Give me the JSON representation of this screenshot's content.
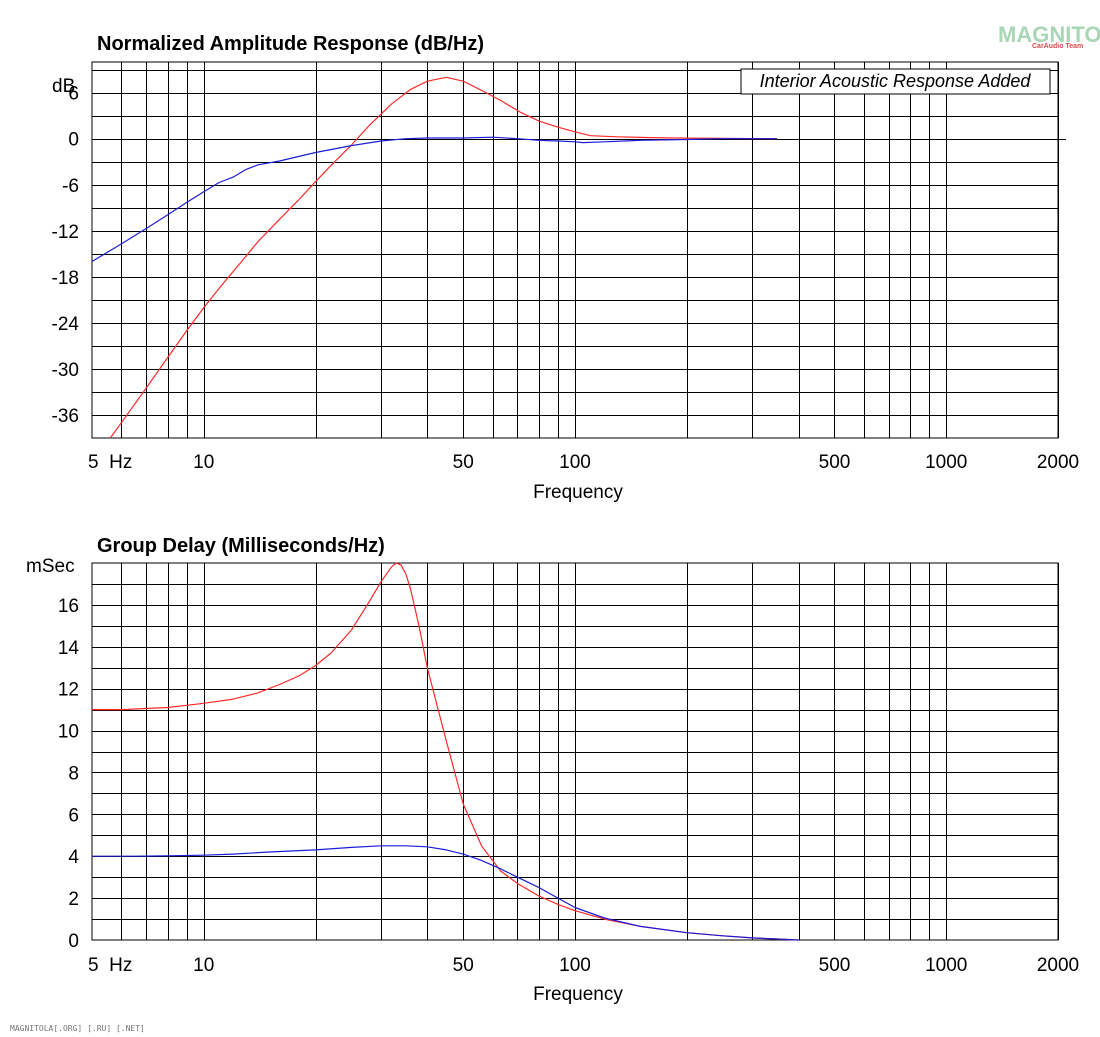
{
  "watermark": {
    "main": "MAGNITOLA",
    "sub": "CarAudio Team"
  },
  "footer": "MAGNITOLA[.ORG] [.RU] [.NET]",
  "colors": {
    "series_red": "#ff2a2a",
    "series_blue": "#1c1cd8",
    "grid": "#000000"
  },
  "chart_data": [
    {
      "type": "line",
      "title": "Normalized Amplitude Response (dB/Hz)",
      "xlabel": "Frequency",
      "ylabel": "dB",
      "x_scale": "log",
      "xlim": [
        5,
        2000
      ],
      "ylim": [
        -39,
        10
      ],
      "x_ticks": [
        5,
        10,
        50,
        100,
        500,
        1000,
        2000
      ],
      "x_tick_labels": [
        "5  Hz",
        "10",
        "50",
        "100",
        "500",
        "1000",
        "2000"
      ],
      "y_ticks": [
        6,
        0,
        -6,
        -12,
        -18,
        -24,
        -30,
        -36
      ],
      "y_tick_labels": [
        "6",
        "0",
        "-6",
        "-12",
        "-18",
        "-24",
        "-30",
        "-36"
      ],
      "grid": true,
      "annotation": "Interior Acoustic Response Added",
      "series": [
        {
          "color": "#ff2a2a",
          "x": [
            5.6,
            6,
            7,
            8,
            9,
            10,
            11,
            12,
            13,
            14,
            16,
            18,
            20,
            22,
            25,
            28,
            32,
            36,
            40,
            45,
            50,
            56,
            63,
            71,
            80,
            90,
            100,
            110,
            130,
            160,
            200,
            250,
            300,
            350
          ],
          "y": [
            -39,
            -37,
            -32.5,
            -28.5,
            -25,
            -22,
            -19.5,
            -17.3,
            -15.3,
            -13.4,
            -10.5,
            -8,
            -5.6,
            -3.5,
            -0.8,
            1.8,
            4.5,
            6.4,
            7.5,
            8,
            7.5,
            6.3,
            5,
            3.5,
            2.3,
            1.5,
            0.9,
            0.4,
            0.25,
            0.15,
            0.08,
            0.04,
            0.02,
            0
          ]
        },
        {
          "color": "#1c1cd8",
          "x": [
            5,
            6,
            7,
            8,
            9,
            10,
            11,
            12,
            13,
            14,
            16,
            20,
            25,
            30,
            35,
            40,
            50,
            60,
            70,
            80,
            90,
            100,
            105,
            120,
            150,
            200,
            250,
            300,
            350
          ],
          "y": [
            -16,
            -13.7,
            -11.7,
            -9.9,
            -8.3,
            -6.9,
            -5.7,
            -5,
            -4,
            -3.4,
            -2.9,
            -1.8,
            -0.9,
            -0.3,
            0,
            0.1,
            0.1,
            0.2,
            0,
            -0.2,
            -0.3,
            -0.4,
            -0.5,
            -0.4,
            -0.2,
            -0.1,
            0,
            0,
            0
          ]
        }
      ]
    },
    {
      "type": "line",
      "title": "Group Delay (Milliseconds/Hz)",
      "xlabel": "Frequency",
      "ylabel": "mSec",
      "x_scale": "log",
      "xlim": [
        5,
        2000
      ],
      "ylim": [
        0,
        18
      ],
      "x_ticks": [
        5,
        10,
        50,
        100,
        500,
        1000,
        2000
      ],
      "x_tick_labels": [
        "5  Hz",
        "10",
        "50",
        "100",
        "500",
        "1000",
        "2000"
      ],
      "y_ticks": [
        16,
        14,
        12,
        10,
        8,
        6,
        4,
        2,
        0
      ],
      "y_tick_labels": [
        "16",
        "14",
        "12",
        "10",
        "8",
        "6",
        "4",
        "2",
        "0"
      ],
      "grid": true,
      "series": [
        {
          "color": "#ff2a2a",
          "x": [
            5,
            6,
            8,
            10,
            12,
            14,
            16,
            18,
            20,
            22,
            25,
            28,
            30,
            32,
            33,
            34,
            35,
            36,
            38,
            40,
            45,
            50,
            56,
            63,
            70,
            80,
            90,
            100,
            120,
            150,
            200,
            250,
            300,
            350,
            400
          ],
          "y": [
            11,
            11,
            11.1,
            11.3,
            11.5,
            11.8,
            12.2,
            12.6,
            13.1,
            13.7,
            14.8,
            16.2,
            17.1,
            17.8,
            18,
            17.9,
            17.5,
            16.8,
            15,
            13,
            9.5,
            6.5,
            4.5,
            3.3,
            2.7,
            2.1,
            1.7,
            1.4,
            1,
            0.65,
            0.35,
            0.2,
            0.1,
            0.05,
            0
          ]
        },
        {
          "color": "#1c1cd8",
          "x": [
            5,
            6.5,
            8,
            10,
            12,
            15,
            20,
            25,
            30,
            35,
            40,
            45,
            50,
            56,
            63,
            70,
            80,
            90,
            100,
            120,
            150,
            200,
            250,
            300,
            350,
            400
          ],
          "y": [
            4,
            4,
            4.02,
            4.05,
            4.1,
            4.2,
            4.3,
            4.42,
            4.5,
            4.5,
            4.45,
            4.3,
            4.1,
            3.8,
            3.4,
            3,
            2.5,
            2,
            1.55,
            1.05,
            0.65,
            0.35,
            0.2,
            0.1,
            0.05,
            0
          ]
        }
      ]
    }
  ]
}
